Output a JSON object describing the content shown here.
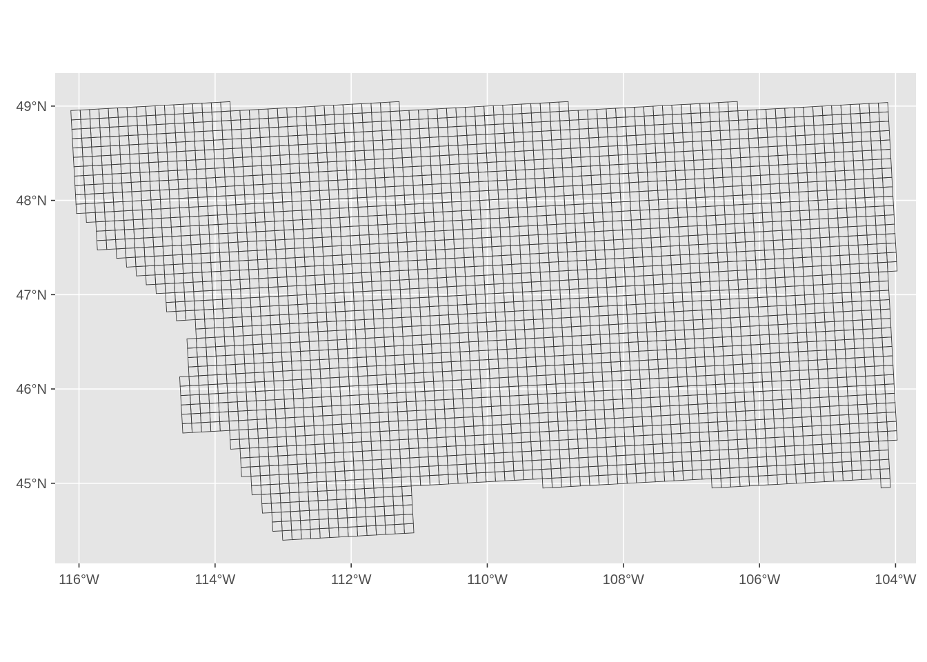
{
  "map": {
    "panel_background": "#e5e5e5",
    "grid_color": "#ffffff",
    "cell_stroke": "#3a3a3a",
    "lon_range": [
      -116.35,
      -103.7
    ],
    "lat_range": [
      44.15,
      49.35
    ],
    "x_ticks": [
      {
        "value": -116,
        "label": "116°W"
      },
      {
        "value": -114,
        "label": "114°W"
      },
      {
        "value": -112,
        "label": "112°W"
      },
      {
        "value": -110,
        "label": "110°W"
      },
      {
        "value": -108,
        "label": "108°W"
      },
      {
        "value": -106,
        "label": "106°W"
      },
      {
        "value": -104,
        "label": "104°W"
      }
    ],
    "y_ticks": [
      {
        "value": 45,
        "label": "45°N"
      },
      {
        "value": 46,
        "label": "46°N"
      },
      {
        "value": 47,
        "label": "47°N"
      },
      {
        "value": 48,
        "label": "48°N"
      },
      {
        "value": 49,
        "label": "49°N"
      }
    ],
    "grid_cells": {
      "type": "square-grid",
      "rows": 49,
      "cols": 103
    },
    "boundary": [
      [
        -116.05,
        49.0
      ],
      [
        -104.05,
        49.0
      ],
      [
        -104.04,
        45.0
      ],
      [
        -111.05,
        45.0
      ],
      [
        -111.05,
        44.5
      ],
      [
        -112.5,
        44.45
      ],
      [
        -113.0,
        44.4
      ],
      [
        -113.3,
        44.8
      ],
      [
        -113.5,
        45.0
      ],
      [
        -113.8,
        45.5
      ],
      [
        -114.2,
        45.6
      ],
      [
        -114.4,
        45.5
      ],
      [
        -114.5,
        45.8
      ],
      [
        -114.4,
        46.4
      ],
      [
        -114.3,
        46.7
      ],
      [
        -114.6,
        46.8
      ],
      [
        -115.0,
        47.2
      ],
      [
        -115.4,
        47.4
      ],
      [
        -115.7,
        47.5
      ],
      [
        -115.8,
        47.8
      ],
      [
        -116.05,
        47.95
      ],
      [
        -116.05,
        49.0
      ]
    ]
  }
}
